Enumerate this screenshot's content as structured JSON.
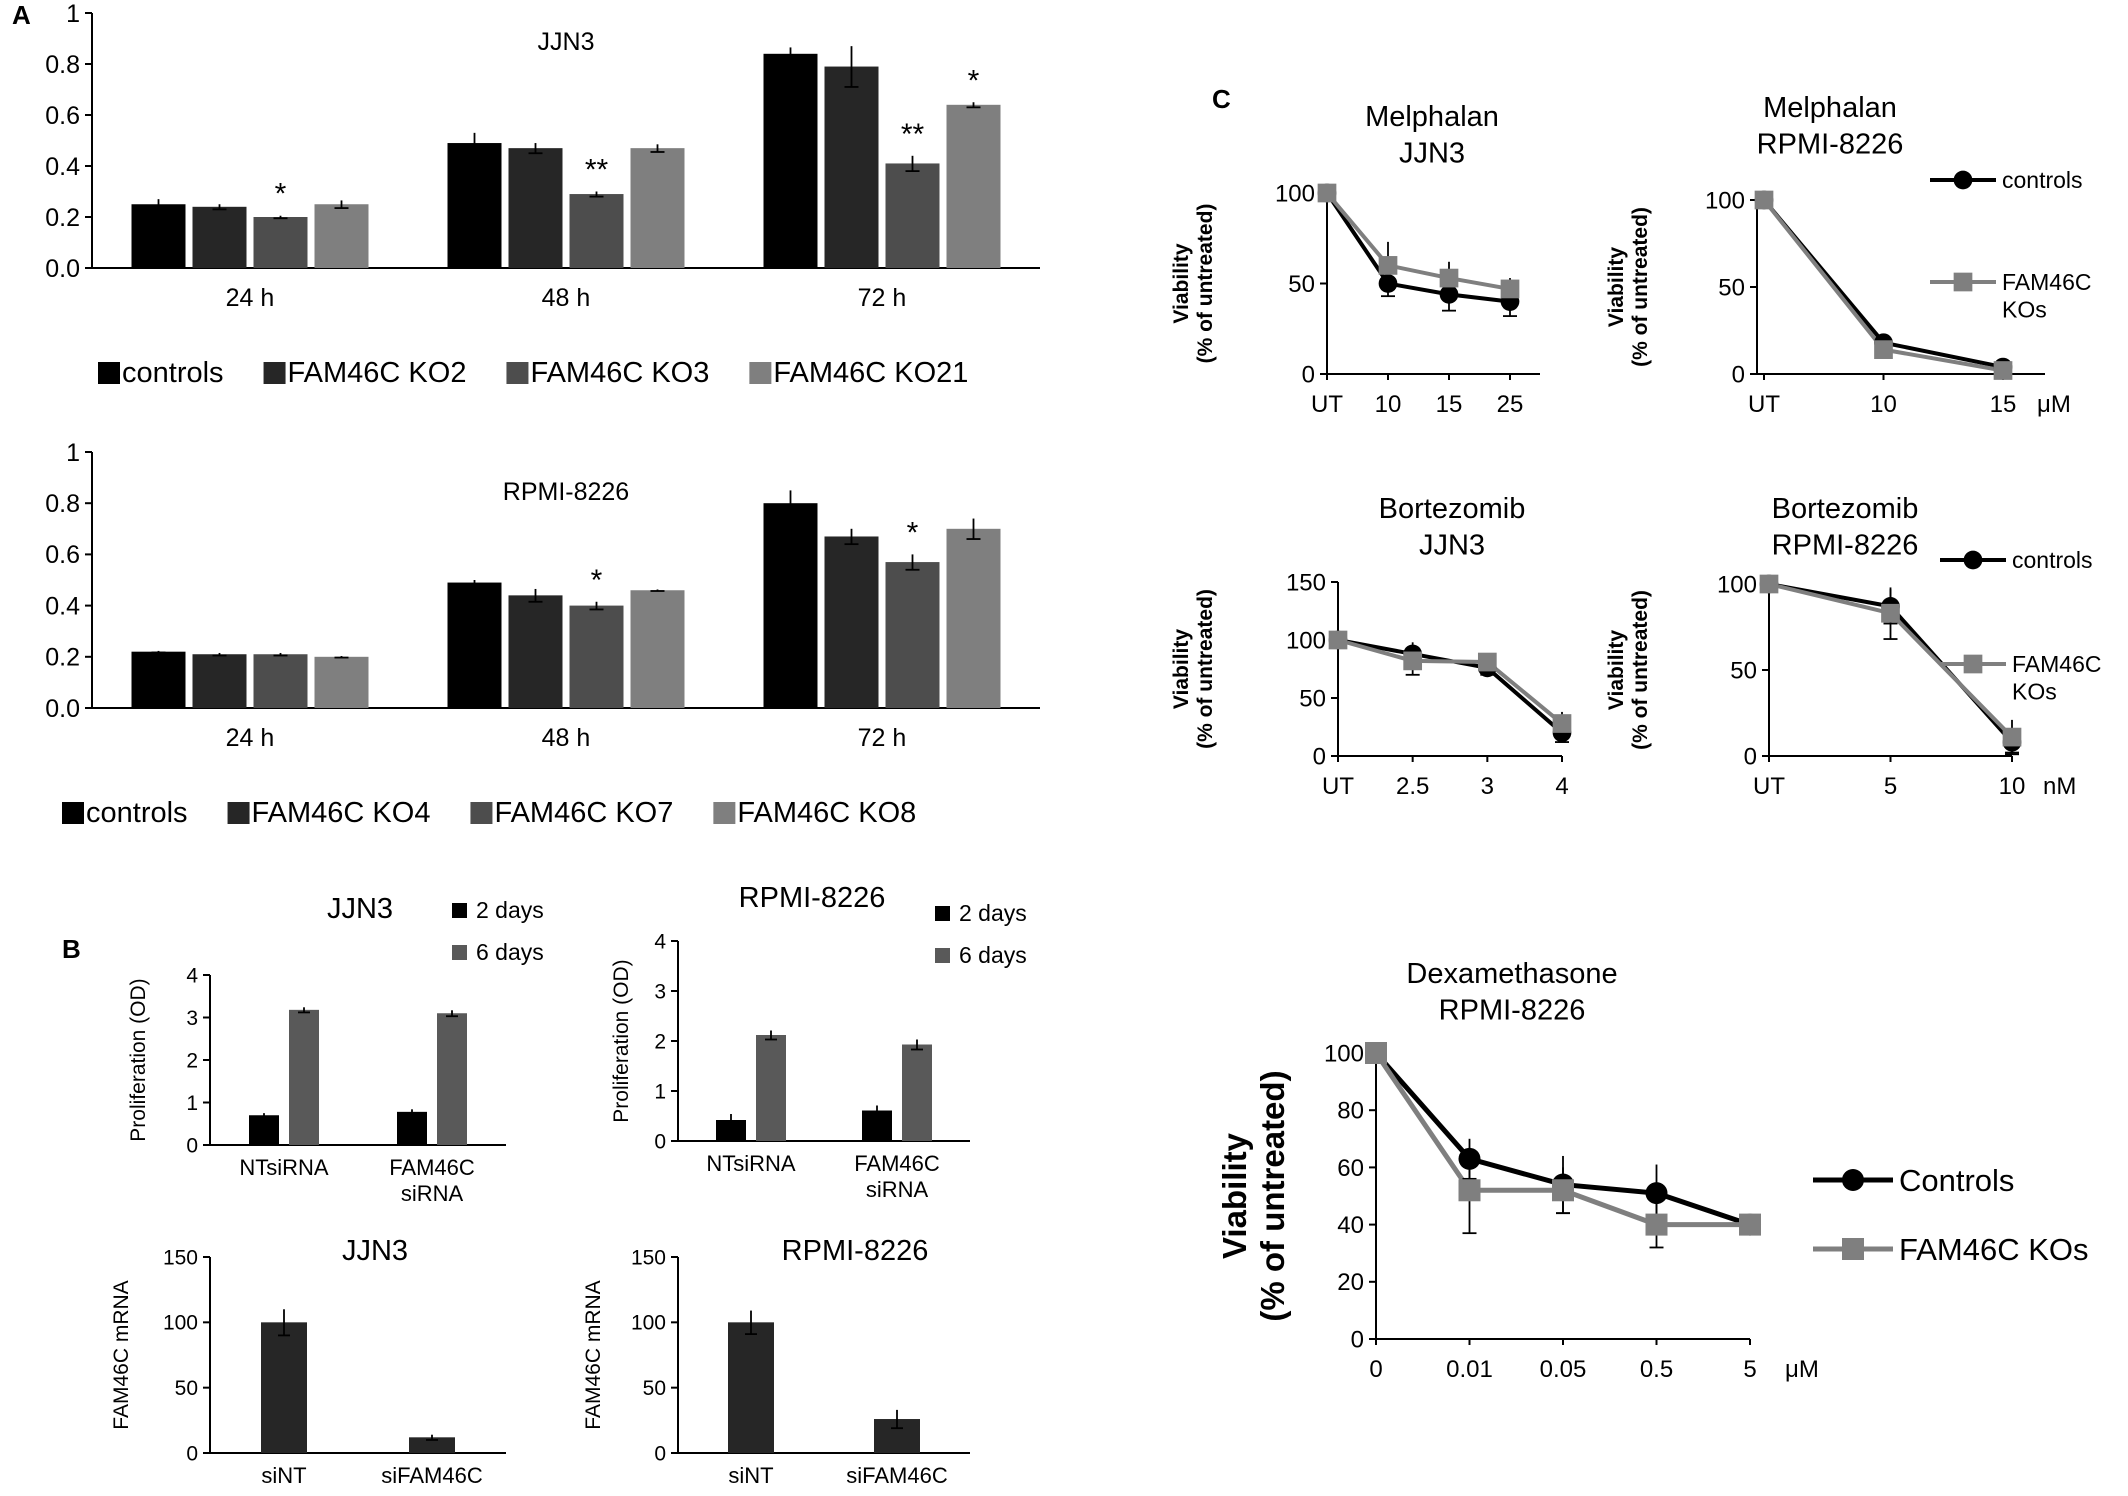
{
  "panel_labels": {
    "a": "A",
    "b": "B",
    "c": "C"
  },
  "colors": {
    "controls": "#000000",
    "ko_a": "#262626",
    "ko_b": "#4d4d4d",
    "ko_c": "#7f7f7f",
    "six_days": "#595959",
    "axis": "#000000"
  },
  "chart_data": [
    {
      "id": "a1",
      "type": "bar",
      "title": "JJN3",
      "xlabel": "",
      "ylabel": "",
      "ylim": [
        0,
        1
      ],
      "yticks": [
        "0.0",
        "0.2",
        "0.4",
        "0.6",
        "0.8",
        "1"
      ],
      "categories": [
        "24 h",
        "48 h",
        "72 h"
      ],
      "series": [
        {
          "name": "controls",
          "values": [
            0.25,
            0.49,
            0.84
          ],
          "errors": [
            0.02,
            0.04,
            0.025
          ]
        },
        {
          "name": "FAM46C KO2",
          "values": [
            0.24,
            0.47,
            0.79
          ],
          "errors": [
            0.01,
            0.02,
            0.08
          ]
        },
        {
          "name": "FAM46C KO3",
          "values": [
            0.2,
            0.29,
            0.41
          ],
          "errors": [
            0.005,
            0.01,
            0.03
          ]
        },
        {
          "name": "FAM46C KO21",
          "values": [
            0.25,
            0.47,
            0.64
          ],
          "errors": [
            0.015,
            0.015,
            0.01
          ]
        }
      ],
      "annotations": [
        {
          "category": "24 h",
          "series": "FAM46C KO3",
          "text": "*"
        },
        {
          "category": "48 h",
          "series": "FAM46C KO3",
          "text": "**"
        },
        {
          "category": "72 h",
          "series": "FAM46C KO3",
          "text": "**"
        },
        {
          "category": "72 h",
          "series": "FAM46C KO21",
          "text": "*"
        }
      ],
      "legend": "bottom"
    },
    {
      "id": "a2",
      "type": "bar",
      "title": "RPMI-8226",
      "xlabel": "",
      "ylabel": "",
      "ylim": [
        0,
        1
      ],
      "yticks": [
        "0.0",
        "0.2",
        "0.4",
        "0.6",
        "0.8",
        "1"
      ],
      "categories": [
        "24 h",
        "48 h",
        "72 h"
      ],
      "series": [
        {
          "name": "controls",
          "values": [
            0.22,
            0.49,
            0.8
          ],
          "errors": [
            0.003,
            0.01,
            0.05
          ]
        },
        {
          "name": "FAM46C KO4",
          "values": [
            0.21,
            0.44,
            0.67
          ],
          "errors": [
            0.005,
            0.025,
            0.03
          ]
        },
        {
          "name": "FAM46C KO7",
          "values": [
            0.21,
            0.4,
            0.57
          ],
          "errors": [
            0.005,
            0.015,
            0.03
          ]
        },
        {
          "name": "FAM46C KO8",
          "values": [
            0.2,
            0.46,
            0.7
          ],
          "errors": [
            0.003,
            0.003,
            0.04
          ]
        }
      ],
      "annotations": [
        {
          "category": "48 h",
          "series": "FAM46C KO7",
          "text": "*"
        },
        {
          "category": "72 h",
          "series": "FAM46C KO7",
          "text": "*"
        }
      ],
      "legend": "bottom"
    },
    {
      "id": "b1",
      "type": "bar",
      "title": "JJN3",
      "xlabel": "",
      "ylabel": "Proliferation (OD)",
      "ylim": [
        0,
        4
      ],
      "yticks": [
        "0",
        "1",
        "2",
        "3",
        "4"
      ],
      "categories": [
        [
          "NTsiRNA"
        ],
        [
          "FAM46C",
          "siRNA"
        ]
      ],
      "series": [
        {
          "name": "2 days",
          "values": [
            0.7,
            0.78
          ],
          "errors": [
            0.05,
            0.06
          ]
        },
        {
          "name": "6 days",
          "values": [
            3.18,
            3.1
          ],
          "errors": [
            0.06,
            0.07
          ]
        }
      ],
      "legend": "top-right"
    },
    {
      "id": "b2",
      "type": "bar",
      "title": "RPMI-8226",
      "xlabel": "",
      "ylabel": "Proliferation (OD)",
      "ylim": [
        0,
        4
      ],
      "yticks": [
        "0",
        "1",
        "2",
        "3",
        "4"
      ],
      "categories": [
        [
          "NTsiRNA"
        ],
        [
          "FAM46C",
          "siRNA"
        ]
      ],
      "series": [
        {
          "name": "2 days",
          "values": [
            0.42,
            0.61
          ],
          "errors": [
            0.12,
            0.1
          ]
        },
        {
          "name": "6 days",
          "values": [
            2.12,
            1.93
          ],
          "errors": [
            0.09,
            0.1
          ]
        }
      ],
      "legend": "top-right"
    },
    {
      "id": "b3",
      "type": "bar",
      "title": "JJN3",
      "xlabel": "",
      "ylabel": "FAM46C mRNA",
      "ylim": [
        0,
        150
      ],
      "yticks": [
        "0",
        "50",
        "100",
        "150"
      ],
      "categories": [
        [
          "siNT"
        ],
        [
          "siFAM46C"
        ]
      ],
      "series": [
        {
          "name": "",
          "values": [
            100,
            12
          ],
          "errors": [
            10,
            2
          ]
        }
      ],
      "legend": "none"
    },
    {
      "id": "b4",
      "type": "bar",
      "title": "RPMI-8226",
      "xlabel": "",
      "ylabel": "FAM46C mRNA",
      "ylim": [
        0,
        150
      ],
      "yticks": [
        "0",
        "50",
        "100",
        "150"
      ],
      "categories": [
        [
          "siNT"
        ],
        [
          "siFAM46C"
        ]
      ],
      "series": [
        {
          "name": "",
          "values": [
            100,
            26
          ],
          "errors": [
            9,
            7
          ]
        }
      ],
      "legend": "none"
    },
    {
      "id": "c1",
      "type": "line",
      "title": "Melphalan\nJJN3",
      "xlabel": "",
      "ylabel": "Viability\n(% of untreated)",
      "ylim": [
        0,
        100
      ],
      "yticks": [
        "0",
        "50",
        "100"
      ],
      "x": [
        "UT",
        "10",
        "15",
        "25"
      ],
      "unit": "",
      "series": [
        {
          "name": "controls",
          "values": [
            100,
            50,
            44,
            40
          ],
          "errors": [
            0,
            7,
            9,
            8
          ]
        },
        {
          "name": "FAM46C KOs",
          "values": [
            100,
            60,
            53,
            47
          ],
          "errors": [
            0,
            13,
            9,
            6
          ]
        }
      ],
      "legend": "none"
    },
    {
      "id": "c2",
      "type": "line",
      "title": "Melphalan\nRPMI-8226",
      "xlabel": "",
      "ylabel": "Viability\n(% of untreated)",
      "ylim": [
        0,
        100
      ],
      "yticks": [
        "0",
        "50",
        "100"
      ],
      "x": [
        "UT",
        "10",
        "15"
      ],
      "unit": "μM",
      "series": [
        {
          "name": "controls",
          "values": [
            100,
            18,
            4
          ],
          "errors": [
            0,
            3,
            1
          ]
        },
        {
          "name": "FAM46C KOs",
          "values": [
            100,
            14,
            2
          ],
          "errors": [
            0,
            3,
            1
          ]
        }
      ],
      "legend_labels": [
        [
          "controls"
        ],
        [
          "FAM46C",
          "KOs"
        ]
      ],
      "legend": "right"
    },
    {
      "id": "c3",
      "type": "line",
      "title": "Bortezomib\nJJN3",
      "xlabel": "",
      "ylabel": "Viability\n(% of untreated)",
      "ylim": [
        0,
        150
      ],
      "yticks": [
        "0",
        "50",
        "100",
        "150"
      ],
      "x": [
        "UT",
        "2.5",
        "3",
        "4"
      ],
      "unit": "",
      "series": [
        {
          "name": "controls",
          "values": [
            100,
            88,
            76,
            20
          ],
          "errors": [
            0,
            10,
            6,
            8
          ]
        },
        {
          "name": "FAM46C KOs",
          "values": [
            100,
            82,
            81,
            28
          ],
          "errors": [
            0,
            12,
            5,
            10
          ]
        }
      ],
      "legend": "none"
    },
    {
      "id": "c4",
      "type": "line",
      "title": "Bortezomib\nRPMI-8226",
      "xlabel": "",
      "ylabel": "Viability\n(% of untreated)",
      "ylim": [
        0,
        100
      ],
      "yticks": [
        "0",
        "50",
        "100"
      ],
      "x": [
        "UT",
        "5",
        "10"
      ],
      "unit": "nM",
      "series": [
        {
          "name": "controls",
          "values": [
            100,
            87,
            8
          ],
          "errors": [
            0,
            10,
            6
          ]
        },
        {
          "name": "FAM46C KOs",
          "values": [
            100,
            83,
            11
          ],
          "errors": [
            0,
            15,
            10
          ]
        }
      ],
      "legend_labels": [
        [
          "controls"
        ],
        [
          "FAM46C",
          "KOs"
        ]
      ],
      "legend": "right"
    },
    {
      "id": "c5",
      "type": "line",
      "title": "Dexamethasone\nRPMI-8226",
      "xlabel": "",
      "ylabel": "Viability\n(% of untreated)",
      "ylim": [
        0,
        100
      ],
      "yticks": [
        "0",
        "20",
        "40",
        "60",
        "80",
        "100"
      ],
      "x": [
        "0",
        "0.01",
        "0.05",
        "0.5",
        "5"
      ],
      "unit": "μM",
      "series": [
        {
          "name": "Controls",
          "values": [
            100,
            63,
            54,
            51,
            40
          ],
          "errors": [
            0,
            7,
            10,
            10,
            2
          ]
        },
        {
          "name": "FAM46C KOs",
          "values": [
            100,
            52,
            52,
            40,
            40
          ],
          "errors": [
            0,
            15,
            8,
            8,
            2
          ]
        }
      ],
      "legend": "right"
    }
  ]
}
